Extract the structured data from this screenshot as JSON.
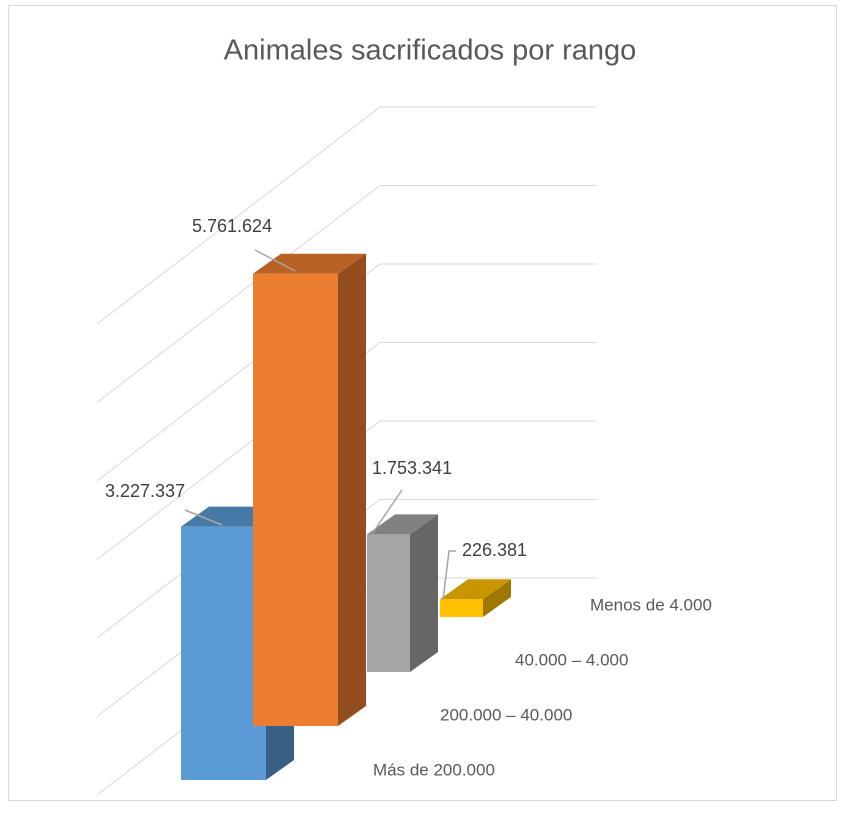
{
  "chart_data": {
    "type": "bar3d",
    "title": "Animales sacrificados por rango",
    "categories": [
      "Más de 200.000",
      "200.000 – 40.000",
      "40.000 – 4.000",
      "Menos de 4.000"
    ],
    "values": [
      3227337,
      5761624,
      1753341,
      226381
    ],
    "value_labels": [
      "3.227.337",
      "5.761.624",
      "1.753.341",
      "226.381"
    ],
    "colors": [
      "#5b9bd5",
      "#ed7d31",
      "#a5a5a5",
      "#ffc000"
    ],
    "ylim": [
      0,
      6000000
    ],
    "yticks": [
      0,
      1000000,
      2000000,
      3000000,
      4000000,
      5000000,
      6000000
    ],
    "grid": true
  }
}
